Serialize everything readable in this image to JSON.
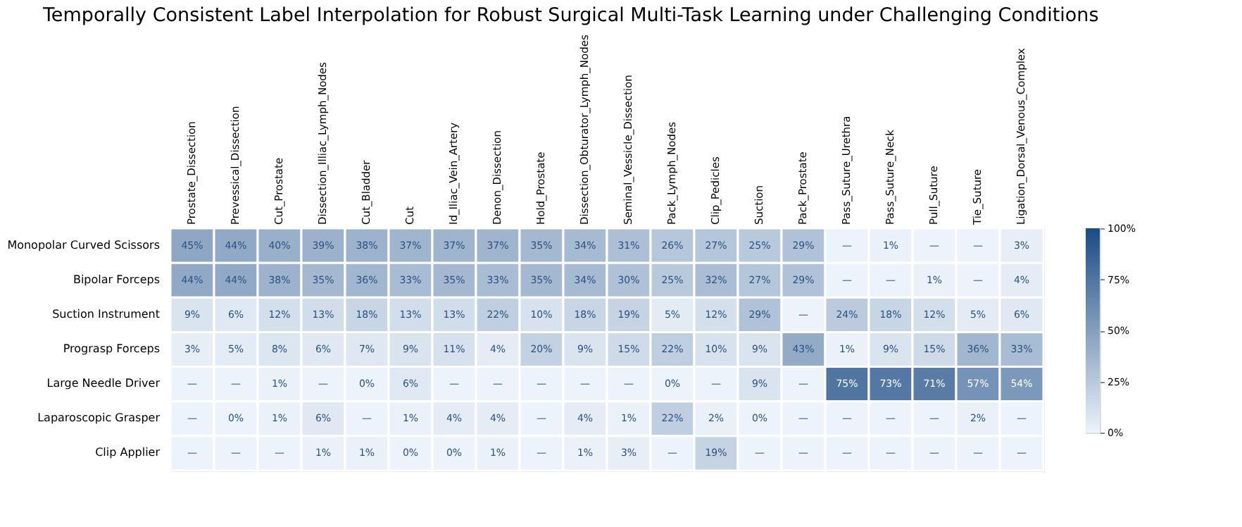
{
  "chart_data": {
    "type": "heatmap",
    "title": "Temporally Consistent Label Interpolation for Robust Surgical Multi-Task Learning under Challenging Conditions",
    "categories": [
      "Prostate_Dissection",
      "Prevessical_Dissection",
      "Cut_Prostate",
      "Dissection_Illiac_Lymph_Nodes",
      "Cut_Bladder",
      "Cut",
      "Id_Iliac_Vein_Artery",
      "Denon_Dissection",
      "Hold_Prostate",
      "Dissection_Obturator_Lymph_Nodes",
      "Seminal_Vessicle_Dissection",
      "Pack_Lymph_Nodes",
      "Clip_Pedicles",
      "Suction",
      "Pack_Prostate",
      "Pass_Suture_Urethra",
      "Pass_Suture_Neck",
      "Pull_Suture",
      "Tie_Suture",
      "Ligation_Dorsal_Venous_Complex"
    ],
    "y_categories": [
      "Monopolar Curved Scissors",
      "Bipolar Forceps",
      "Suction Instrument",
      "Prograsp Forceps",
      "Large Needle Driver",
      "Laparoscopic Grasper",
      "Clip Applier"
    ],
    "cells": [
      [
        45,
        44,
        40,
        39,
        38,
        37,
        37,
        37,
        35,
        34,
        31,
        26,
        27,
        25,
        29,
        0,
        1,
        0,
        0,
        3
      ],
      [
        44,
        44,
        38,
        35,
        36,
        33,
        35,
        33,
        35,
        34,
        30,
        25,
        32,
        27,
        29,
        0,
        0,
        1,
        0,
        4
      ],
      [
        9,
        6,
        12,
        13,
        18,
        13,
        13,
        22,
        10,
        18,
        19,
        5,
        12,
        29,
        0,
        24,
        18,
        12,
        5,
        6
      ],
      [
        3,
        5,
        8,
        6,
        7,
        9,
        11,
        4,
        20,
        9,
        15,
        22,
        10,
        9,
        43,
        1,
        9,
        15,
        36,
        33
      ],
      [
        0,
        0,
        1,
        0,
        0,
        6,
        0,
        0,
        0,
        0,
        0,
        0,
        0,
        9,
        0,
        75,
        73,
        71,
        57,
        54
      ],
      [
        0,
        0,
        1,
        6,
        0,
        1,
        4,
        4,
        0,
        4,
        1,
        22,
        2,
        0,
        0,
        0,
        0,
        0,
        2,
        0
      ],
      [
        0,
        0,
        0,
        1,
        1,
        0,
        0,
        1,
        0,
        1,
        3,
        0,
        19,
        0,
        0,
        0,
        0,
        0,
        0,
        0
      ]
    ],
    "cell_labels": [
      [
        "45%",
        "44%",
        "40%",
        "39%",
        "38%",
        "37%",
        "37%",
        "37%",
        "35%",
        "34%",
        "31%",
        "26%",
        "27%",
        "25%",
        "29%",
        "—",
        "1%",
        "—",
        "—",
        "3%"
      ],
      [
        "44%",
        "44%",
        "38%",
        "35%",
        "36%",
        "33%",
        "35%",
        "33%",
        "35%",
        "34%",
        "30%",
        "25%",
        "32%",
        "27%",
        "29%",
        "—",
        "—",
        "1%",
        "—",
        "4%"
      ],
      [
        "9%",
        "6%",
        "12%",
        "13%",
        "18%",
        "13%",
        "13%",
        "22%",
        "10%",
        "18%",
        "19%",
        "5%",
        "12%",
        "29%",
        "—",
        "24%",
        "18%",
        "12%",
        "5%",
        "6%"
      ],
      [
        "3%",
        "5%",
        "8%",
        "6%",
        "7%",
        "9%",
        "11%",
        "4%",
        "20%",
        "9%",
        "15%",
        "22%",
        "10%",
        "9%",
        "43%",
        "1%",
        "9%",
        "15%",
        "36%",
        "33%"
      ],
      [
        "—",
        "—",
        "1%",
        "—",
        "0%",
        "6%",
        "—",
        "—",
        "—",
        "—",
        "—",
        "0%",
        "—",
        "9%",
        "—",
        "75%",
        "73%",
        "71%",
        "57%",
        "54%"
      ],
      [
        "—",
        "0%",
        "1%",
        "6%",
        "—",
        "1%",
        "4%",
        "4%",
        "—",
        "4%",
        "1%",
        "22%",
        "2%",
        "0%",
        "—",
        "—",
        "—",
        "—",
        "2%",
        "—"
      ],
      [
        "—",
        "—",
        "—",
        "1%",
        "1%",
        "0%",
        "0%",
        "1%",
        "—",
        "1%",
        "3%",
        "—",
        "19%",
        "—",
        "—",
        "—",
        "—",
        "—",
        "—",
        "—"
      ]
    ],
    "clim": [
      0,
      100
    ],
    "cticks": [
      {
        "value": 0,
        "label": "0%"
      },
      {
        "value": 25,
        "label": "25%"
      },
      {
        "value": 50,
        "label": "50%"
      },
      {
        "value": 75,
        "label": "75%"
      },
      {
        "value": 100,
        "label": "100%"
      }
    ]
  }
}
